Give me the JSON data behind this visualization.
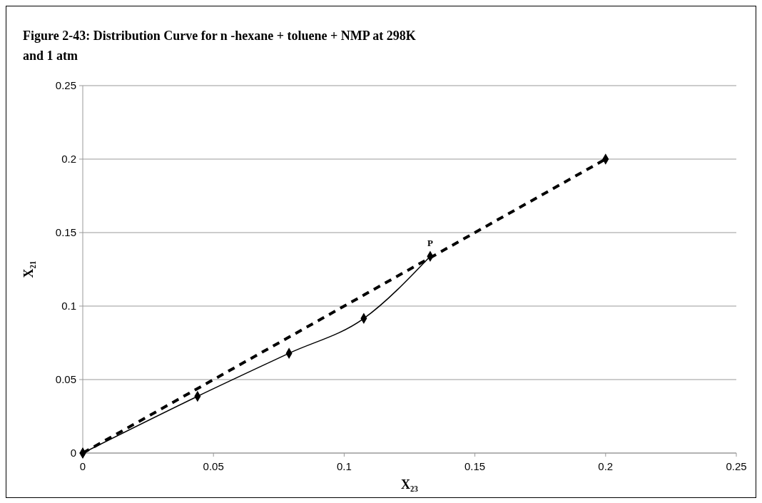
{
  "chart_data": {
    "type": "line",
    "title": "Figure 2-43: Distribution Curve for n -hexane + toluene +  NMP at 298K and 1 atm",
    "xlabel": "X₂₃",
    "ylabel": "X₂₁",
    "series": [
      {
        "color": "#000000",
        "x": [
          0,
          0.0439,
          0.0789,
          0.1075,
          0.1329
        ],
        "values": [
          0,
          0.0386,
          0.0679,
          0.0916,
          0.1339
        ],
        "line_style": "solid"
      },
      {
        "color": "#000000",
        "x": [
          0,
          0.2
        ],
        "values": [
          0,
          0.2
        ],
        "line_style": "dashed"
      }
    ],
    "annotations": [
      {
        "text": "P",
        "x": 0.1329,
        "y": 0.1339
      }
    ],
    "xlim": [
      0,
      0.25
    ],
    "xticks": [
      0,
      0.05,
      0.1,
      0.15,
      0.2,
      0.25
    ],
    "ylim": [
      0,
      0.25
    ],
    "yticks": [
      0,
      0.05,
      0.1,
      0.15,
      0.2,
      0.25
    ],
    "grid": "y",
    "marker": "diamond"
  }
}
